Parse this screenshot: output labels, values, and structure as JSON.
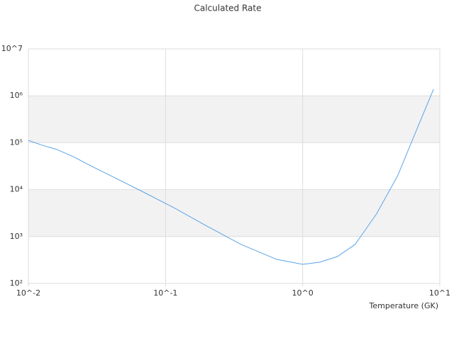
{
  "chart_data": {
    "type": "line",
    "title": "Calculated Rate",
    "x_label": "Temperature (GK)",
    "x_log": true,
    "y_log": true,
    "xlim": [
      0.01,
      10
    ],
    "ylim": [
      100,
      10000000
    ],
    "xticks": [
      {
        "value": 0.01,
        "label": "10^-2"
      },
      {
        "value": 0.1,
        "label": "10^-1"
      },
      {
        "value": 1,
        "label": "10^0"
      },
      {
        "value": 10,
        "label": "10^1"
      }
    ],
    "yticks": [
      {
        "value": 100,
        "label": "10²"
      },
      {
        "value": 1000,
        "label": "10³"
      },
      {
        "value": 10000,
        "label": "10⁴"
      },
      {
        "value": 100000,
        "label": "10⁵"
      },
      {
        "value": 1000000,
        "label": "10⁶"
      },
      {
        "value": 10000000,
        "label": "10^7"
      }
    ],
    "grid": true,
    "band_color": "#f2f2f2",
    "series": [
      {
        "color": "#5aa3e8",
        "x": [
          0.01,
          0.0127,
          0.0161,
          0.0217,
          0.0292,
          0.0418,
          0.0673,
          0.115,
          0.196,
          0.356,
          0.647,
          1.0,
          1.33,
          1.79,
          2.41,
          3.45,
          4.93,
          7.05,
          9.0
        ],
        "values": [
          112000,
          88000,
          72000,
          49000,
          31000,
          18500,
          9200,
          4130,
          1730,
          678,
          326,
          256,
          284,
          375,
          678,
          3020,
          19800,
          250000,
          1380000
        ]
      }
    ]
  }
}
